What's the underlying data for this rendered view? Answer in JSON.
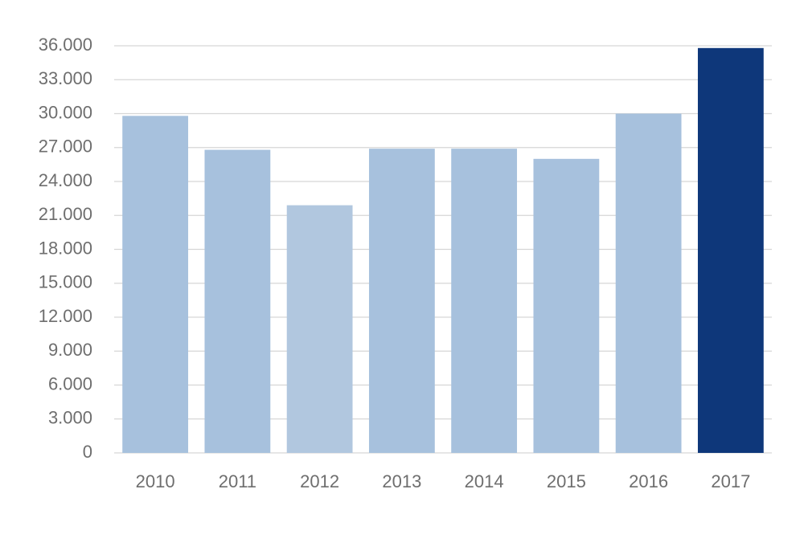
{
  "chart_data": {
    "type": "bar",
    "categories": [
      "2010",
      "2011",
      "2012",
      "2013",
      "2014",
      "2015",
      "2016",
      "2017"
    ],
    "values": [
      29800,
      26800,
      21900,
      26900,
      26900,
      26000,
      30000,
      35800
    ],
    "colors": [
      "#a7c1dd",
      "#a7c1dd",
      "#b1c7df",
      "#a7c1dd",
      "#a7c1dd",
      "#a7c1dd",
      "#a7c1dd",
      "#0e377a"
    ],
    "ylim": [
      0,
      36000
    ],
    "yticks": [
      0,
      {
        "value": 3000,
        "label": "3.000"
      },
      {
        "value": 6000,
        "label": "6.000"
      },
      {
        "value": 9000,
        "label": "9.000"
      },
      {
        "value": 12000,
        "label": "12.000"
      },
      {
        "value": 15000,
        "label": "15.000"
      },
      {
        "value": 18000,
        "label": "18.000"
      },
      {
        "value": 21000,
        "label": "21.000"
      },
      {
        "value": 24000,
        "label": "24.000"
      },
      {
        "value": 27000,
        "label": "27.000"
      },
      {
        "value": 30000,
        "label": "30.000"
      },
      {
        "value": 33000,
        "label": "33.000"
      },
      {
        "value": 36000,
        "label": "36.000"
      }
    ],
    "grid": true
  }
}
